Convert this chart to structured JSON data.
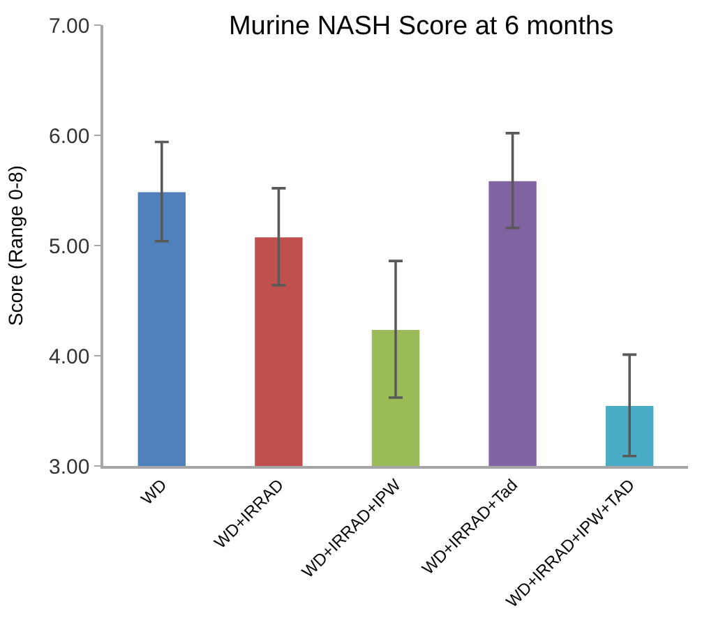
{
  "chart_data": {
    "type": "bar",
    "title": "Murine NASH Score at 6 months",
    "ylabel": "Score (Range 0-8)",
    "categories": [
      "WD",
      "WD+IRRAD",
      "WD+IRRAD+IPW",
      "WD+IRRAD+Tad",
      "WD+IRRAD+IPW+TAD"
    ],
    "values": [
      5.49,
      5.08,
      4.24,
      5.59,
      3.55
    ],
    "colors": [
      "#4f81bd",
      "#c0504d",
      "#9bbb59",
      "#8064a2",
      "#4bacc6"
    ],
    "errors": [
      0.45,
      0.44,
      0.62,
      0.43,
      0.46
    ],
    "ylim": [
      3,
      7
    ],
    "yticks": [
      {
        "value": 3,
        "label": "3.00"
      },
      {
        "value": 4,
        "label": "4.00"
      },
      {
        "value": 5,
        "label": "5.00"
      },
      {
        "value": 6,
        "label": "6.00"
      },
      {
        "value": 7,
        "label": "7.00"
      }
    ]
  }
}
